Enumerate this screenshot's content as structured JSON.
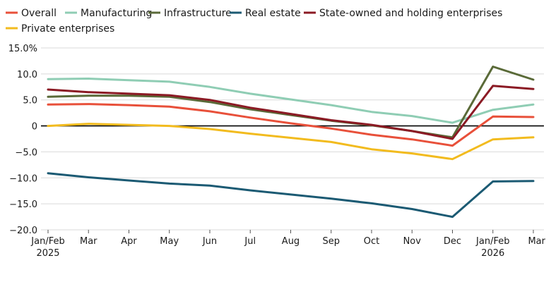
{
  "chart_data": {
    "type": "line",
    "categories": [
      "Jan/Feb",
      "Mar",
      "Apr",
      "May",
      "Jun",
      "Jul",
      "Aug",
      "Sep",
      "Oct",
      "Nov",
      "Dec",
      "Jan/Feb",
      "Mar"
    ],
    "category_years": [
      "2025",
      "",
      "",
      "",
      "",
      "",
      "",
      "",
      "",
      "",
      "",
      "2026",
      ""
    ],
    "yticks": [
      "15.0%",
      "10.0",
      "5.0",
      "0",
      "−5.0",
      "−10.0",
      "−15.0",
      "−20.0"
    ],
    "ylim": [
      -20,
      15
    ],
    "title": "",
    "xlabel": "",
    "ylabel": "",
    "grid": "horizontal",
    "legend_position": "top-left",
    "series": [
      {
        "name": "Overall",
        "color": "#e8503a",
        "values": [
          4.1,
          4.2,
          4.0,
          3.7,
          2.8,
          1.6,
          0.5,
          -0.5,
          -1.7,
          -2.6,
          -3.8,
          1.8,
          1.7
        ]
      },
      {
        "name": "Manufacturing",
        "color": "#8fcdb4",
        "values": [
          9.0,
          9.1,
          8.8,
          8.5,
          7.5,
          6.2,
          5.1,
          4.0,
          2.7,
          1.9,
          0.6,
          3.1,
          4.1
        ]
      },
      {
        "name": "Infrastructure",
        "color": "#5a6a38",
        "values": [
          5.6,
          5.8,
          5.8,
          5.6,
          4.6,
          3.2,
          2.1,
          1.0,
          0.1,
          -1.0,
          -2.2,
          11.4,
          8.9
        ]
      },
      {
        "name": "Real estate",
        "color": "#1b5a73",
        "values": [
          -9.1,
          -9.9,
          -10.5,
          -11.1,
          -11.5,
          -12.4,
          -13.2,
          -14.0,
          -14.9,
          -16.0,
          -17.5,
          -10.7,
          -10.6
        ]
      },
      {
        "name": "State-owned and holding enterprises",
        "color": "#8b1a24",
        "values": [
          7.0,
          6.5,
          6.2,
          5.9,
          5.0,
          3.5,
          2.3,
          1.1,
          0.2,
          -1.0,
          -2.5,
          7.7,
          7.1
        ]
      },
      {
        "name": "Private enterprises",
        "color": "#f2bb1e",
        "values": [
          0.0,
          0.4,
          0.2,
          0.0,
          -0.6,
          -1.5,
          -2.3,
          -3.1,
          -4.5,
          -5.3,
          -6.4,
          -2.6,
          -2.2
        ]
      }
    ]
  }
}
